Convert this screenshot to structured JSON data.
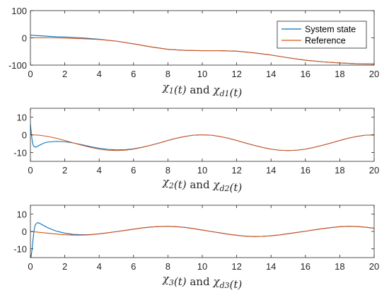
{
  "chart_data": [
    {
      "type": "line",
      "xlim": [
        0,
        20
      ],
      "ylim": [
        -100,
        100
      ],
      "xticks": [
        0,
        2,
        4,
        6,
        8,
        10,
        12,
        14,
        16,
        18,
        20
      ],
      "yticks": [
        -100,
        0,
        100
      ],
      "xlabel": "χ1(t) and χd1(t)",
      "grid": false,
      "legend": {
        "placement": "top-right",
        "entries": [
          "System state",
          "Reference"
        ]
      },
      "series": [
        {
          "name": "System state",
          "color": "#0072BD",
          "x": [
            0,
            0.5,
            1,
            1.5,
            2,
            3,
            4,
            5,
            6,
            7,
            8,
            9,
            10,
            11,
            12,
            13,
            14,
            15,
            16,
            17,
            18,
            19,
            20
          ],
          "y": [
            10,
            8,
            6,
            4,
            3,
            0,
            -5,
            -12,
            -22,
            -33,
            -42,
            -46,
            -47,
            -47,
            -49,
            -55,
            -63,
            -73,
            -82,
            -88,
            -92,
            -95,
            -96
          ]
        },
        {
          "name": "Reference",
          "color": "#D95319",
          "x": [
            0,
            0.5,
            1,
            1.5,
            2,
            3,
            4,
            5,
            6,
            7,
            8,
            9,
            10,
            11,
            12,
            13,
            14,
            15,
            16,
            17,
            18,
            19,
            20
          ],
          "y": [
            0,
            0.5,
            0.5,
            0,
            -1,
            -3,
            -6,
            -12,
            -22,
            -33,
            -42,
            -46,
            -47,
            -47,
            -49,
            -55,
            -63,
            -73,
            -82,
            -88,
            -92,
            -95,
            -96
          ]
        }
      ]
    },
    {
      "type": "line",
      "xlim": [
        0,
        20
      ],
      "ylim": [
        -15,
        15
      ],
      "xticks": [
        0,
        2,
        4,
        6,
        8,
        10,
        12,
        14,
        16,
        18,
        20
      ],
      "yticks": [
        -10,
        0,
        10
      ],
      "xlabel": "χ2(t) and χd2(t)",
      "grid": false,
      "series": [
        {
          "name": "System state",
          "color": "#0072BD",
          "x": [
            0,
            0.05,
            0.1,
            0.15,
            0.2,
            0.3,
            0.4,
            0.6,
            0.8,
            1,
            1.5,
            2,
            2.5,
            3,
            3.5,
            4,
            4.5,
            5,
            5.5,
            6,
            6.5,
            7,
            7.5,
            8,
            8.5,
            9,
            9.5,
            10,
            10.5,
            11,
            11.5,
            12,
            12.5,
            13,
            13.5,
            14,
            14.5,
            15,
            15.5,
            16,
            16.5,
            17,
            17.5,
            18,
            18.5,
            19,
            19.5,
            20
          ],
          "y": [
            6,
            1,
            -3,
            -5.5,
            -6.5,
            -7,
            -6.6,
            -5.5,
            -4.6,
            -4.1,
            -3.7,
            -3.9,
            -4.6,
            -5.6,
            -6.7,
            -7.6,
            -8.2,
            -8.5,
            -8.4,
            -7.9,
            -7.0,
            -5.9,
            -4.6,
            -3.2,
            -1.9,
            -0.9,
            -0.2,
            0.0,
            -0.2,
            -0.9,
            -1.9,
            -3.2,
            -4.6,
            -5.9,
            -7.1,
            -8.1,
            -8.7,
            -8.9,
            -8.7,
            -8.1,
            -7.1,
            -5.9,
            -4.6,
            -3.2,
            -1.9,
            -0.9,
            -0.2,
            -0.1
          ]
        },
        {
          "name": "Reference",
          "color": "#D95319",
          "x": [
            0,
            0.5,
            1,
            1.5,
            2,
            2.5,
            3,
            3.5,
            4,
            4.5,
            5,
            5.5,
            6,
            6.5,
            7,
            7.5,
            8,
            8.5,
            9,
            9.5,
            10,
            10.5,
            11,
            11.5,
            12,
            12.5,
            13,
            13.5,
            14,
            14.5,
            15,
            15.5,
            16,
            16.5,
            17,
            17.5,
            18,
            18.5,
            19,
            19.5,
            20
          ],
          "y": [
            0,
            -0.2,
            -0.9,
            -1.9,
            -3.2,
            -4.6,
            -5.9,
            -7.1,
            -8.1,
            -8.7,
            -8.9,
            -8.7,
            -8.1,
            -7.1,
            -5.9,
            -4.6,
            -3.2,
            -1.9,
            -0.9,
            -0.2,
            0.0,
            -0.2,
            -0.9,
            -1.9,
            -3.2,
            -4.6,
            -5.9,
            -7.1,
            -8.1,
            -8.7,
            -8.9,
            -8.7,
            -8.1,
            -7.1,
            -5.9,
            -4.6,
            -3.2,
            -1.9,
            -0.9,
            -0.2,
            -0.1
          ]
        }
      ]
    },
    {
      "type": "line",
      "xlim": [
        0,
        20
      ],
      "ylim": [
        -15,
        15
      ],
      "xticks": [
        0,
        2,
        4,
        6,
        8,
        10,
        12,
        14,
        16,
        18,
        20
      ],
      "yticks": [
        -10,
        0,
        10
      ],
      "xlabel": "χ3(t) and χd3(t)",
      "grid": false,
      "series": [
        {
          "name": "System state",
          "color": "#0072BD",
          "x": [
            0,
            0.03,
            0.06,
            0.1,
            0.14,
            0.18,
            0.22,
            0.26,
            0.3,
            0.4,
            0.5,
            0.6,
            0.8,
            1.0,
            1.2,
            1.5,
            2.0,
            2.5,
            3.0,
            3.5,
            4.0,
            4.5,
            5.0,
            5.5,
            6.0,
            6.5,
            7.0,
            7.5,
            8.0,
            8.5,
            9.0,
            9.5,
            10.0,
            10.5,
            11.0,
            11.5,
            12.0,
            12.5,
            13.0,
            13.5,
            14.0,
            14.5,
            15.0,
            15.5,
            16.0,
            16.5,
            17.0,
            17.5,
            18.0,
            18.5,
            19.0,
            19.5,
            20.0
          ],
          "y": [
            -15,
            -15,
            -13,
            -10,
            -6,
            -2,
            1,
            3,
            4,
            5,
            4.8,
            4.3,
            3.2,
            2.2,
            1.3,
            0.2,
            -1.0,
            -1.7,
            -1.9,
            -1.8,
            -1.4,
            -0.8,
            -0.1,
            0.6,
            1.3,
            2.0,
            2.5,
            2.8,
            2.9,
            2.7,
            2.3,
            1.6,
            0.8,
            0.0,
            -0.8,
            -1.6,
            -2.2,
            -2.7,
            -2.9,
            -2.8,
            -2.5,
            -2.0,
            -1.3,
            -0.6,
            0.1,
            0.9,
            1.6,
            2.2,
            2.7,
            2.9,
            2.8,
            2.4,
            1.8
          ]
        },
        {
          "name": "Reference",
          "color": "#D95319",
          "x": [
            0,
            0.5,
            1.0,
            1.5,
            2.0,
            2.5,
            3.0,
            3.5,
            4.0,
            4.5,
            5.0,
            5.5,
            6.0,
            6.5,
            7.0,
            7.5,
            8.0,
            8.5,
            9.0,
            9.5,
            10.0,
            10.5,
            11.0,
            11.5,
            12.0,
            12.5,
            13.0,
            13.5,
            14.0,
            14.5,
            15.0,
            15.5,
            16.0,
            16.5,
            17.0,
            17.5,
            18.0,
            18.5,
            19.0,
            19.5,
            20.0
          ],
          "y": [
            0,
            -0.5,
            -1.0,
            -1.5,
            -1.9,
            -2.1,
            -2.1,
            -1.9,
            -1.4,
            -0.8,
            -0.1,
            0.6,
            1.3,
            2.0,
            2.5,
            2.8,
            2.9,
            2.7,
            2.3,
            1.6,
            0.8,
            0.0,
            -0.8,
            -1.6,
            -2.2,
            -2.7,
            -2.9,
            -2.8,
            -2.5,
            -2.0,
            -1.3,
            -0.6,
            0.1,
            0.9,
            1.6,
            2.2,
            2.7,
            2.9,
            2.8,
            2.4,
            1.8
          ]
        }
      ]
    }
  ]
}
